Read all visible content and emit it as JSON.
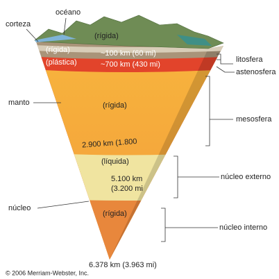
{
  "surface": {
    "ocean": "océano",
    "crust": "corteza",
    "crust_state": "(rígida)"
  },
  "layers": [
    {
      "name": "litosfera",
      "state": "(rígida)",
      "depth": "~100 km (60 mi)"
    },
    {
      "name": "astenosfera",
      "state": "(plástica)",
      "depth": "~700 km (430 mi)"
    },
    {
      "name": "mesosfera",
      "state": "(rígida)",
      "depth": "2.900 km (1.800"
    },
    {
      "name": "núcleo externo",
      "state": "(líquida)",
      "depth_lines": [
        "5.100 km",
        "(3.200 mi"
      ]
    },
    {
      "name": "núcleo interno",
      "state": "(rígida)",
      "depth": "6.378 km (3.963 mi)"
    }
  ],
  "groups": {
    "mantle": "manto",
    "core": "núcleo"
  },
  "credit": "© 2006 Merriam-Webster, Inc."
}
